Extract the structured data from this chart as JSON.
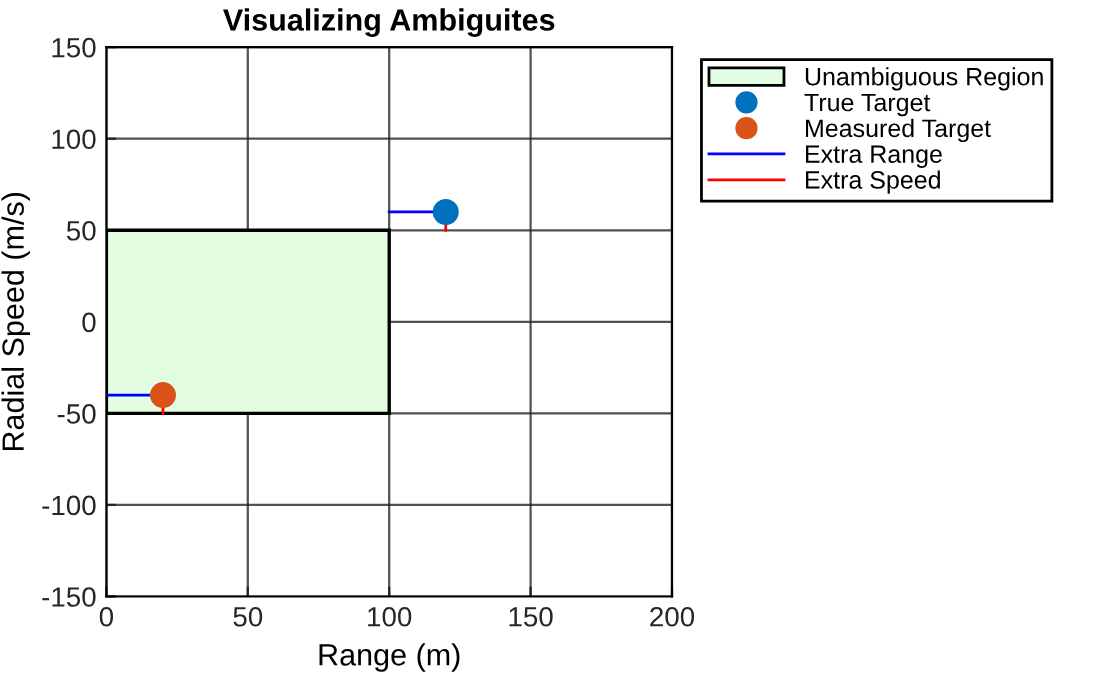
{
  "chart_data": {
    "type": "scatter",
    "title": "Visualizing Ambiguites",
    "xlabel": "Range (m)",
    "ylabel": "Radial Speed (m/s)",
    "xlim": [
      0,
      200
    ],
    "xticks": [
      0,
      50,
      100,
      150,
      200
    ],
    "ylim": [
      -150,
      150
    ],
    "yticks": [
      -150,
      -100,
      -50,
      0,
      50,
      100,
      150
    ],
    "grid": true,
    "legend": "top right",
    "series": [
      {
        "name": "Unambiguous Region",
        "type": "area",
        "color": "#e2fde2",
        "x": [
          0,
          0,
          100,
          100
        ],
        "values": [
          -50,
          50,
          50,
          -50
        ]
      },
      {
        "name": "True Target",
        "marker": "circle",
        "color": "#0072bd",
        "x": [
          120
        ],
        "values": [
          60
        ]
      },
      {
        "name": "Measured Target",
        "marker": "circle",
        "color": "#d95319",
        "x": [
          20
        ],
        "values": [
          -40
        ]
      },
      {
        "name": "Extra Range",
        "type": "line",
        "color": "#0000ff",
        "x": [
          100,
          120
        ],
        "values": [
          60,
          60
        ]
      },
      {
        "type": "line",
        "color": "#0000ff",
        "x": [
          0,
          20
        ],
        "values": [
          -40,
          -40
        ]
      },
      {
        "name": "Extra Speed",
        "type": "line",
        "color": "#ff0000",
        "x": [
          120,
          120
        ],
        "values": [
          60,
          50
        ]
      },
      {
        "type": "line",
        "color": "#ff0000",
        "x": [
          20,
          20
        ],
        "values": [
          -40,
          -50
        ]
      }
    ]
  }
}
